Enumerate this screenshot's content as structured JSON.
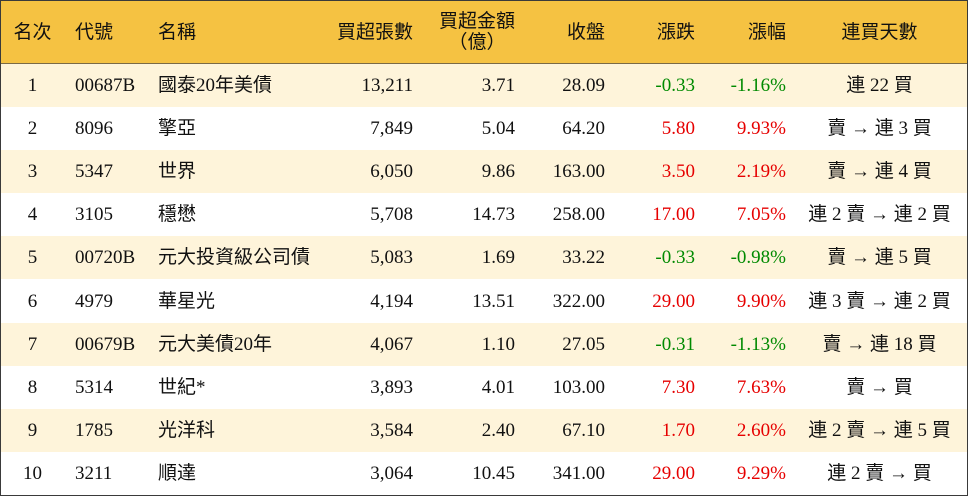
{
  "colors": {
    "header_bg": "#F5C242",
    "row_alt_bg": "#FEF4DA",
    "row_bg": "#FFFFFF",
    "text": "#111111",
    "border": "#3A3A3A",
    "up": "#E60000",
    "down": "#008A00"
  },
  "chart_data": {
    "type": "table",
    "columns": [
      {
        "label": "名次"
      },
      {
        "label": "代號"
      },
      {
        "label": "名稱"
      },
      {
        "label": "買超張數"
      },
      {
        "label": "買超金額",
        "sub": "（億）"
      },
      {
        "label": "收盤"
      },
      {
        "label": "漲跌"
      },
      {
        "label": "漲幅"
      },
      {
        "label": "連買天數"
      }
    ],
    "rows": [
      [
        "1",
        "00687B",
        "國泰20年美債",
        "13,211",
        "3.71",
        "28.09",
        "-0.33",
        "-1.16%",
        "連 22 買"
      ],
      [
        "2",
        "8096",
        "擎亞",
        "7,849",
        "5.04",
        "64.20",
        "5.80",
        "9.93%",
        "賣 → 連 3 買"
      ],
      [
        "3",
        "5347",
        "世界",
        "6,050",
        "9.86",
        "163.00",
        "3.50",
        "2.19%",
        "賣 → 連 4 買"
      ],
      [
        "4",
        "3105",
        "穩懋",
        "5,708",
        "14.73",
        "258.00",
        "17.00",
        "7.05%",
        "連 2 賣 → 連 2 買"
      ],
      [
        "5",
        "00720B",
        "元大投資級公司債",
        "5,083",
        "1.69",
        "33.22",
        "-0.33",
        "-0.98%",
        "賣 → 連 5 買"
      ],
      [
        "6",
        "4979",
        "華星光",
        "4,194",
        "13.51",
        "322.00",
        "29.00",
        "9.90%",
        "連 3 賣 → 連 2 買"
      ],
      [
        "7",
        "00679B",
        "元大美債20年",
        "4,067",
        "1.10",
        "27.05",
        "-0.31",
        "-1.13%",
        "賣 → 連 18 買"
      ],
      [
        "8",
        "5314",
        "世紀*",
        "3,893",
        "4.01",
        "103.00",
        "7.30",
        "7.63%",
        "賣 → 買"
      ],
      [
        "9",
        "1785",
        "光洋科",
        "3,584",
        "2.40",
        "67.10",
        "1.70",
        "2.60%",
        "連 2 賣 → 連 5 買"
      ],
      [
        "10",
        "3211",
        "順達",
        "3,064",
        "10.45",
        "341.00",
        "29.00",
        "9.29%",
        "連 2 賣 → 買"
      ]
    ]
  }
}
